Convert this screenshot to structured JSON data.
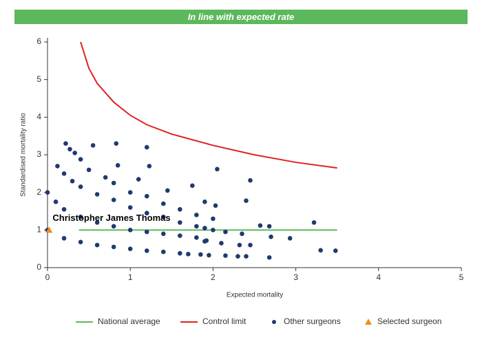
{
  "chart_data": {
    "type": "scatter",
    "title": "In line with expected rate",
    "x_label": "Expected mortality",
    "y_label": "Standardised mortality ratio",
    "xlim": [
      0,
      5
    ],
    "ylim": [
      0,
      6
    ],
    "xticks": [
      0,
      1,
      2,
      3,
      4,
      5
    ],
    "yticks": [
      0,
      1,
      2,
      3,
      4,
      5,
      6
    ],
    "grid": false,
    "legend": "bottom",
    "series": [
      {
        "name": "National average",
        "color": "#5cb85c",
        "marker": "line",
        "x": [
          0.38,
          3.5
        ],
        "values": [
          1,
          1
        ]
      },
      {
        "name": "Control limit",
        "color": "#e02020",
        "marker": "line",
        "x": [
          0.4,
          0.5,
          0.6,
          0.8,
          1.0,
          1.2,
          1.5,
          2.0,
          2.5,
          3.0,
          3.5
        ],
        "values": [
          6,
          5.3,
          4.9,
          4.4,
          4.05,
          3.8,
          3.55,
          3.25,
          3.0,
          2.8,
          2.65
        ]
      },
      {
        "name": "Other surgeons",
        "color": "#1f3a6e",
        "marker": "circle",
        "x": [
          0,
          0.2,
          0.4,
          0.6,
          0.8,
          1.0,
          1.2,
          1.4,
          1.6,
          1.7,
          0,
          0.1,
          0.2,
          0.4,
          0.6,
          0.8,
          1.0,
          1.2,
          1.4,
          1.6,
          1.8,
          1.9,
          0.2,
          0.3,
          0.4,
          0.6,
          0.8,
          1.0,
          1.2,
          1.4,
          1.6,
          1.8,
          1.9,
          2.0,
          0.5,
          0.7,
          0.8,
          1.0,
          1.2,
          1.4,
          1.6,
          1.8,
          2.0,
          0.22,
          0.27,
          0.33,
          0.4,
          0.55,
          0.83,
          1.2,
          0.85,
          1.23,
          0.12,
          1.45,
          1.75,
          2.05,
          2.45,
          1.9,
          2.03,
          2.4,
          2.57,
          2.68,
          3.22,
          2.7,
          2.93,
          2.1,
          2.15,
          2.35,
          2.45,
          2.32,
          2.3,
          2.4,
          2.68,
          3.3,
          3.48,
          1.85,
          1.95,
          2.15,
          1.92,
          1.1
        ],
        "values": [
          1.0,
          0.78,
          0.68,
          0.6,
          0.55,
          0.5,
          0.45,
          0.42,
          0.38,
          0.36,
          2.0,
          1.75,
          1.55,
          1.35,
          1.2,
          1.1,
          1.0,
          0.95,
          0.9,
          0.85,
          0.8,
          0.7,
          2.5,
          2.3,
          2.15,
          1.95,
          1.8,
          1.6,
          1.45,
          1.35,
          1.2,
          1.1,
          1.05,
          1.0,
          2.6,
          2.4,
          2.25,
          2.0,
          1.9,
          1.7,
          1.55,
          1.4,
          1.3,
          3.3,
          3.15,
          3.05,
          2.88,
          3.25,
          3.3,
          3.2,
          2.72,
          2.7,
          2.7,
          2.05,
          2.18,
          2.62,
          2.32,
          1.75,
          1.65,
          1.78,
          1.12,
          1.1,
          1.2,
          0.82,
          0.78,
          0.65,
          0.95,
          0.9,
          0.6,
          0.6,
          0.3,
          0.3,
          0.27,
          0.46,
          0.45,
          0.35,
          0.33,
          0.32,
          0.72,
          2.35
        ]
      },
      {
        "name": "Selected surgeon",
        "color": "#f08c1e",
        "marker": "triangle",
        "x": [
          0.02
        ],
        "values": [
          1.0
        ],
        "label": "Christopher James Thomas"
      }
    ]
  }
}
